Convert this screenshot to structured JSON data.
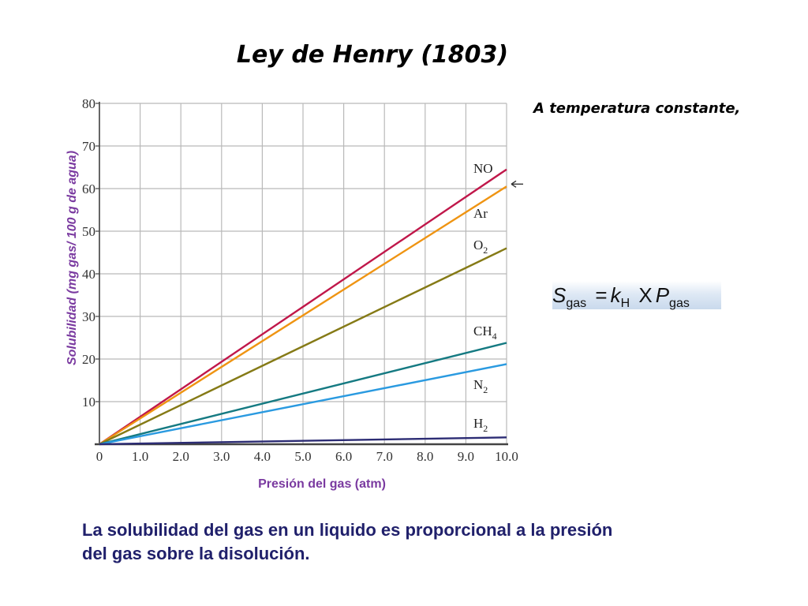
{
  "slide": {
    "title": "Ley de Henry (1803)",
    "subtitle": "A temperatura constante,",
    "caption_line1": "La solubilidad del gas en un liquido es proporcional a la presión",
    "caption_line2": "del gas sobre la disolución.",
    "formula": {
      "s": "S",
      "s_sub": "gas",
      "equals": "=",
      "k": "k",
      "k_sub": "H",
      "times": "X",
      "p": "P",
      "p_sub": "gas"
    }
  },
  "chart_data": {
    "type": "line",
    "xlabel": "Presión del gas (atm)",
    "ylabel": "Solubilidad (mg gas/ 100 g de agua)",
    "xlim": [
      0,
      10
    ],
    "ylim": [
      0,
      80
    ],
    "grid": true,
    "x_ticks": [
      "0",
      "1.0",
      "2.0",
      "3.0",
      "4.0",
      "5.0",
      "6.0",
      "7.0",
      "8.0",
      "9.0",
      "10.0"
    ],
    "y_ticks": [
      "10",
      "20",
      "30",
      "40",
      "50",
      "60",
      "70",
      "80"
    ],
    "series": [
      {
        "name": "NO",
        "name_base": "NO",
        "name_sub": "",
        "color": "#c0174a",
        "x": [
          0,
          10
        ],
        "y": [
          0,
          64.5
        ]
      },
      {
        "name": "Ar",
        "name_base": "Ar",
        "name_sub": "",
        "color": "#ef9412",
        "x": [
          0,
          10
        ],
        "y": [
          0,
          60.5
        ]
      },
      {
        "name": "O2",
        "name_base": "O",
        "name_sub": "2",
        "color": "#857a16",
        "x": [
          0,
          10
        ],
        "y": [
          0,
          46
        ]
      },
      {
        "name": "CH4",
        "name_base": "CH",
        "name_sub": "4",
        "color": "#157a82",
        "x": [
          0,
          10
        ],
        "y": [
          0,
          23.8
        ]
      },
      {
        "name": "N2",
        "name_base": "N",
        "name_sub": "2",
        "color": "#2a9ae0",
        "x": [
          0,
          10
        ],
        "y": [
          0,
          18.8
        ]
      },
      {
        "name": "H2",
        "name_base": "H",
        "name_sub": "2",
        "color": "#2c2c74",
        "x": [
          0,
          10
        ],
        "y": [
          0,
          1.6
        ]
      }
    ],
    "annotation": {
      "type": "arrow",
      "x": 10,
      "y": 60.5
    }
  }
}
